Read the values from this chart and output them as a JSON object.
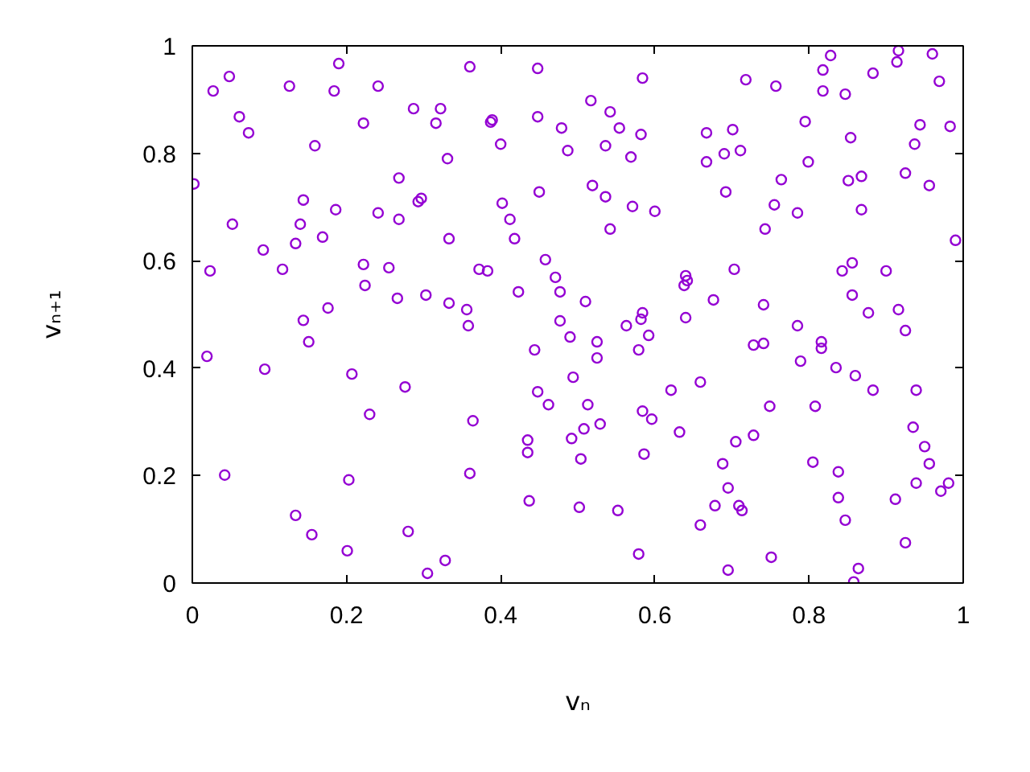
{
  "chart_data": {
    "type": "scatter",
    "xlabel": "vₙ",
    "ylabel": "vₙ₊₁",
    "x": [
      0.19,
      0.048,
      0.027,
      0.126,
      0.184,
      0.241,
      0.287,
      0.322,
      0.316,
      0.061,
      0.073,
      0.222,
      0.159,
      0.331,
      0.002,
      0.268,
      0.144,
      0.186,
      0.241,
      0.268,
      0.293,
      0.297,
      0.052,
      0.14,
      0.169,
      0.134,
      0.092,
      0.333,
      0.023,
      0.117,
      0.222,
      0.255,
      0.224,
      0.266,
      0.303,
      0.333,
      0.176,
      0.144,
      0.36,
      0.448,
      0.584,
      0.517,
      0.542,
      0.387,
      0.389,
      0.448,
      0.479,
      0.554,
      0.582,
      0.667,
      0.4,
      0.487,
      0.536,
      0.569,
      0.667,
      0.45,
      0.519,
      0.536,
      0.402,
      0.571,
      0.6,
      0.412,
      0.542,
      0.418,
      0.458,
      0.372,
      0.383,
      0.471,
      0.64,
      0.642,
      0.638,
      0.423,
      0.477,
      0.51,
      0.356,
      0.584,
      0.582,
      0.64,
      0.477,
      0.828,
      0.916,
      0.96,
      0.914,
      0.818,
      0.883,
      0.718,
      0.757,
      0.818,
      0.847,
      0.969,
      0.795,
      0.701,
      0.854,
      0.944,
      0.983,
      0.937,
      0.69,
      0.711,
      0.799,
      0.764,
      0.851,
      0.868,
      0.925,
      0.956,
      0.692,
      0.755,
      0.785,
      0.868,
      0.743,
      0.99,
      0.703,
      0.843,
      0.856,
      0.9,
      0.676,
      0.741,
      0.856,
      0.877,
      0.916,
      0.151,
      0.019,
      0.094,
      0.207,
      0.276,
      0.23,
      0.042,
      0.203,
      0.134,
      0.155,
      0.28,
      0.201,
      0.305,
      0.328,
      0.358,
      0.49,
      0.563,
      0.592,
      0.444,
      0.525,
      0.525,
      0.579,
      0.494,
      0.448,
      0.462,
      0.513,
      0.621,
      0.659,
      0.364,
      0.584,
      0.596,
      0.529,
      0.508,
      0.435,
      0.492,
      0.632,
      0.435,
      0.504,
      0.586,
      0.36,
      0.437,
      0.502,
      0.552,
      0.659,
      0.579,
      0.785,
      0.925,
      0.728,
      0.741,
      0.816,
      0.816,
      0.789,
      0.835,
      0.86,
      0.883,
      0.939,
      0.749,
      0.808,
      0.935,
      0.705,
      0.728,
      0.95,
      0.688,
      0.805,
      0.956,
      0.695,
      0.838,
      0.939,
      0.981,
      0.971,
      0.678,
      0.709,
      0.713,
      0.838,
      0.912,
      0.847,
      0.925,
      0.751,
      0.695,
      0.864,
      0.858
    ],
    "series": [
      {
        "color": "#9400d3",
        "values": [
          0.967,
          0.943,
          0.916,
          0.925,
          0.916,
          0.925,
          0.883,
          0.883,
          0.856,
          0.868,
          0.838,
          0.856,
          0.814,
          0.79,
          0.743,
          0.754,
          0.713,
          0.695,
          0.689,
          0.677,
          0.71,
          0.716,
          0.668,
          0.668,
          0.644,
          0.632,
          0.62,
          0.641,
          0.581,
          0.584,
          0.593,
          0.587,
          0.554,
          0.53,
          0.536,
          0.521,
          0.512,
          0.489,
          0.961,
          0.958,
          0.94,
          0.898,
          0.877,
          0.858,
          0.862,
          0.868,
          0.847,
          0.847,
          0.835,
          0.838,
          0.817,
          0.805,
          0.814,
          0.793,
          0.784,
          0.728,
          0.74,
          0.719,
          0.707,
          0.701,
          0.692,
          0.677,
          0.659,
          0.641,
          0.602,
          0.584,
          0.581,
          0.569,
          0.572,
          0.563,
          0.554,
          0.542,
          0.542,
          0.524,
          0.509,
          0.503,
          0.491,
          0.494,
          0.488,
          0.982,
          0.991,
          0.985,
          0.97,
          0.955,
          0.949,
          0.937,
          0.925,
          0.916,
          0.91,
          0.934,
          0.859,
          0.844,
          0.829,
          0.853,
          0.85,
          0.817,
          0.799,
          0.805,
          0.784,
          0.751,
          0.749,
          0.757,
          0.763,
          0.74,
          0.728,
          0.704,
          0.689,
          0.695,
          0.659,
          0.638,
          0.584,
          0.581,
          0.596,
          0.581,
          0.527,
          0.518,
          0.536,
          0.503,
          0.509,
          0.449,
          0.422,
          0.398,
          0.389,
          0.365,
          0.314,
          0.201,
          0.192,
          0.126,
          0.09,
          0.096,
          0.06,
          0.018,
          0.042,
          0.479,
          0.458,
          0.479,
          0.461,
          0.434,
          0.449,
          0.419,
          0.434,
          0.383,
          0.356,
          0.332,
          0.332,
          0.359,
          0.374,
          0.302,
          0.32,
          0.305,
          0.296,
          0.287,
          0.266,
          0.269,
          0.281,
          0.243,
          0.231,
          0.24,
          0.204,
          0.153,
          0.141,
          0.135,
          0.108,
          0.054,
          0.479,
          0.47,
          0.443,
          0.446,
          0.449,
          0.437,
          0.413,
          0.401,
          0.386,
          0.359,
          0.359,
          0.329,
          0.329,
          0.29,
          0.263,
          0.275,
          0.254,
          0.222,
          0.225,
          0.222,
          0.177,
          0.207,
          0.186,
          0.186,
          0.171,
          0.144,
          0.144,
          0.135,
          0.159,
          0.156,
          0.117,
          0.075,
          0.048,
          0.024,
          0.027,
          0.002
        ]
      }
    ],
    "xlim": [
      0,
      1
    ],
    "ylim": [
      0,
      1
    ],
    "xticks": [
      0,
      0.2,
      0.4,
      0.6,
      0.8,
      1
    ],
    "yticks": [
      0,
      0.2,
      0.4,
      0.6,
      0.8,
      1
    ],
    "marker": "circle",
    "grid": false
  }
}
